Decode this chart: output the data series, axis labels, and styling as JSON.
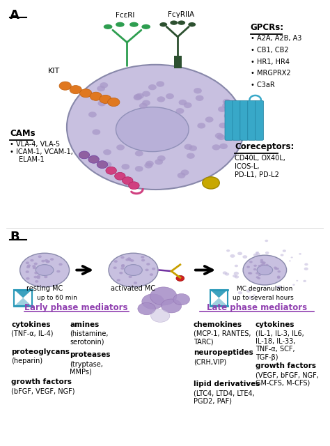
{
  "bg_color": "#ffffff",
  "panel_a_label": "A",
  "panel_b_label": "B",
  "cell_color": "#c8c0e0",
  "nucleus_color": "#b8b0d8",
  "kit_color": "#e07820",
  "cams_chain_color": "#9060a0",
  "cams_chain2_color": "#d04080",
  "receptor_green": "#2e9e50",
  "receptor_darkgreen": "#2d5030",
  "receptor_blue": "#38a8c8",
  "anchor_color": "#c8a800",
  "fce_label": "FcεRI",
  "fcy_label": "FcγRIIA",
  "kit_label": "KIT",
  "gpcrs_title": "GPCRs:",
  "gpcrs_items": [
    "A2A, A2B, A3",
    "CB1, CB2",
    "HR1, HR4",
    "MRGPRX2",
    "C3aR"
  ],
  "cams_title": "CAMs",
  "coreceptors_title": "Coreceptors:",
  "resting_label": "resting MC",
  "activated_label": "activated MC",
  "degranulation_label": "MC degranulation",
  "early_timer": "up to 60 min",
  "late_timer": "up to several hours",
  "early_phase_label": "Early phase mediators",
  "late_phase_label": "Late phase mediators",
  "early_col1": [
    {
      "bold": "cytokines",
      "normal": "(TNF-α, IL-4)"
    },
    {
      "bold": "proteoglycans",
      "normal": "(heparin)"
    },
    {
      "bold": "growth factors",
      "normal": "(bFGF, VEGF, NGF)"
    }
  ],
  "early_col2": [
    {
      "bold": "amines",
      "normal": "(histamine,\nserotonin)"
    },
    {
      "bold": "proteases",
      "normal": "(tryptase,\nMMPs)"
    }
  ],
  "late_col1": [
    {
      "bold": "chemokines",
      "normal": "(MCP-1, RANTES,\nTARC)"
    },
    {
      "bold": "neuropeptides",
      "normal": "(CRH,VIP)"
    },
    {
      "bold": "lipid derivatives",
      "normal": "(LTC4, LTD4, LTE4,\nPGD2, PAF)"
    }
  ],
  "late_col2": [
    {
      "bold": "cytokines",
      "normal": "(IL-1, IL-3, IL6,\nIL-18, IL-33,\nTNF-α, SCF,\nTGF-β)"
    },
    {
      "bold": "growth factors",
      "normal": "(VEGF, bFGF, NGF,\nGM-CFS, M-CFS)"
    }
  ],
  "purple_text": "#9040b0",
  "teal_color": "#2898b8"
}
